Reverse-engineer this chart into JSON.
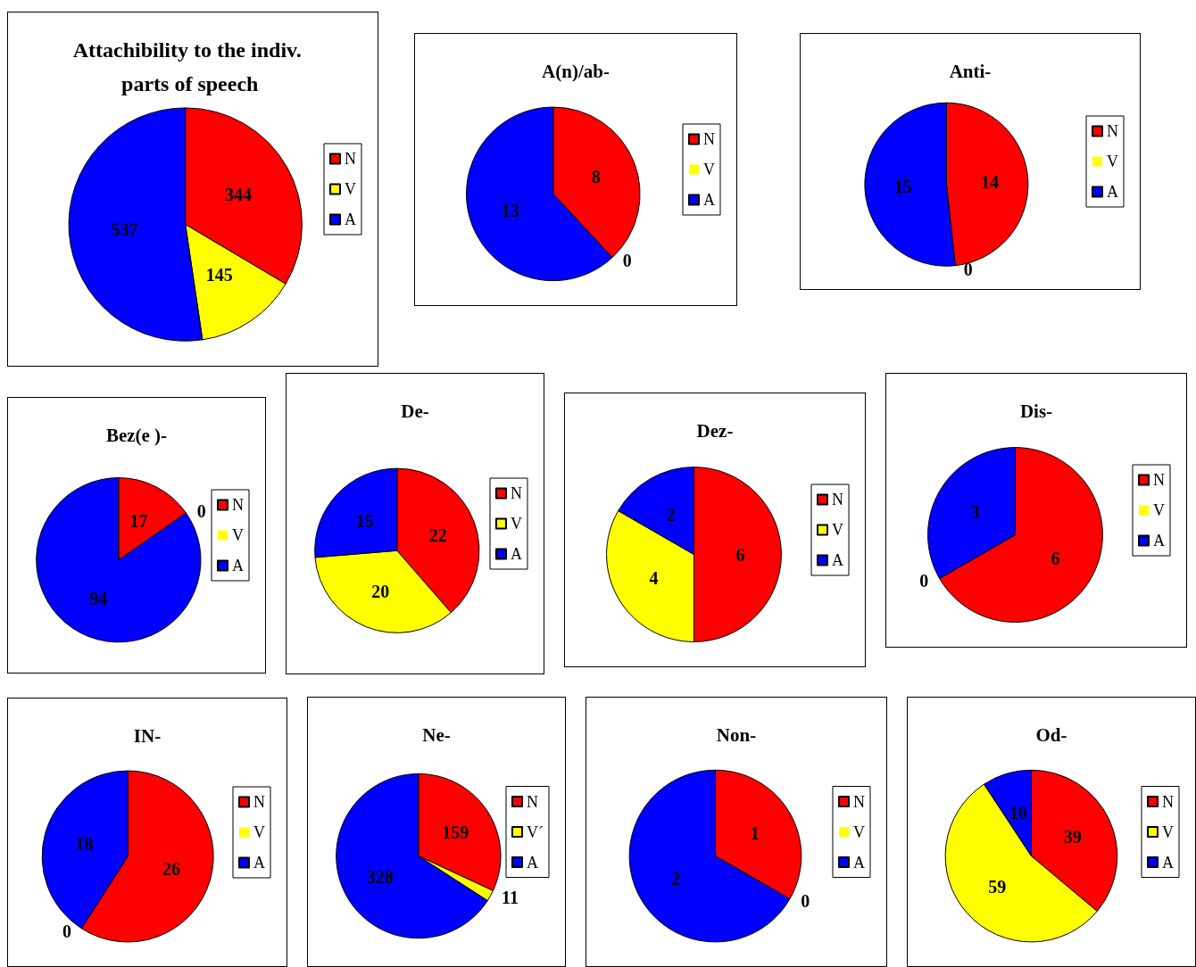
{
  "chart_data": [
    {
      "type": "pie",
      "title": "Attachibility to the indiv. parts of speech",
      "categories": [
        "N",
        "V",
        "A"
      ],
      "values": [
        344,
        145,
        537
      ],
      "colors": [
        "#ff0000",
        "#ffff00",
        "#0000ff"
      ],
      "value_labels": [
        "344",
        "145",
        "537"
      ],
      "legend": "right"
    },
    {
      "type": "pie",
      "title": "A(n)/ab-",
      "categories": [
        "N",
        "V",
        "A"
      ],
      "values": [
        8,
        0,
        13
      ],
      "colors": [
        "#ff0000",
        "#ffff00",
        "#0000ff"
      ],
      "value_labels": [
        "8",
        "0",
        "13"
      ],
      "legend": "right"
    },
    {
      "type": "pie",
      "title": "Anti-",
      "categories": [
        "N",
        "V",
        "A"
      ],
      "values": [
        14,
        0,
        15
      ],
      "colors": [
        "#ff0000",
        "#ffff00",
        "#0000ff"
      ],
      "value_labels": [
        "14",
        "0",
        "15"
      ],
      "legend": "right"
    },
    {
      "type": "pie",
      "title": "Bez(e )-",
      "categories": [
        "N",
        "V",
        "A"
      ],
      "values": [
        17,
        0,
        94
      ],
      "colors": [
        "#ff0000",
        "#ffff00",
        "#0000ff"
      ],
      "value_labels": [
        "17",
        "0",
        "94"
      ],
      "legend": "right"
    },
    {
      "type": "pie",
      "title": "De-",
      "categories": [
        "N",
        "V",
        "A"
      ],
      "values": [
        22,
        20,
        15
      ],
      "colors": [
        "#ff0000",
        "#ffff00",
        "#0000ff"
      ],
      "value_labels": [
        "22",
        "20",
        "15"
      ],
      "legend": "right"
    },
    {
      "type": "pie",
      "title": "Dez-",
      "categories": [
        "N",
        "V",
        "A"
      ],
      "values": [
        6,
        4,
        2
      ],
      "colors": [
        "#ff0000",
        "#ffff00",
        "#0000ff"
      ],
      "value_labels": [
        "6",
        "4",
        "2"
      ],
      "legend": "right"
    },
    {
      "type": "pie",
      "title": "Dis-",
      "categories": [
        "N",
        "V",
        "A"
      ],
      "values": [
        6,
        0,
        3
      ],
      "colors": [
        "#ff0000",
        "#ffff00",
        "#0000ff"
      ],
      "value_labels": [
        "6",
        "0",
        "3"
      ],
      "legend": "right"
    },
    {
      "type": "pie",
      "title": "IN-",
      "categories": [
        "N",
        "V",
        "A"
      ],
      "values": [
        26,
        0,
        18
      ],
      "colors": [
        "#ff0000",
        "#ffff00",
        "#0000ff"
      ],
      "value_labels": [
        "26",
        "0",
        "18"
      ],
      "legend": "right"
    },
    {
      "type": "pie",
      "title": "Ne-",
      "categories": [
        "N",
        "V´",
        "A"
      ],
      "values": [
        159,
        11,
        328
      ],
      "colors": [
        "#ff0000",
        "#ffff00",
        "#0000ff"
      ],
      "value_labels": [
        "159",
        "11",
        "328"
      ],
      "legend": "right"
    },
    {
      "type": "pie",
      "title": "Non-",
      "categories": [
        "N",
        "V",
        "A"
      ],
      "values": [
        1,
        0,
        2
      ],
      "colors": [
        "#ff0000",
        "#ffff00",
        "#0000ff"
      ],
      "value_labels": [
        "1",
        "0",
        "2"
      ],
      "legend": "right"
    },
    {
      "type": "pie",
      "title": "Od-",
      "categories": [
        "N",
        "V",
        "A"
      ],
      "values": [
        39,
        59,
        10
      ],
      "colors": [
        "#ff0000",
        "#ffff00",
        "#0000ff"
      ],
      "value_labels": [
        "39",
        "59",
        "10"
      ],
      "legend": "right"
    }
  ]
}
